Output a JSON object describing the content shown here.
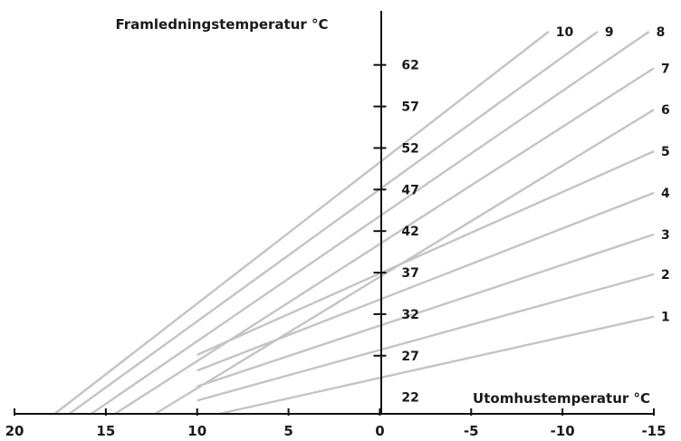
{
  "chart_data": {
    "type": "line",
    "title": "",
    "ylabel": "Framledningstemperatur °C",
    "xlabel": "Utomhustemperatur °C",
    "xlim": [
      20,
      -15
    ],
    "ylim": [
      20,
      66
    ],
    "x_ticks": [
      20,
      15,
      10,
      5,
      0,
      -5,
      -10,
      -15
    ],
    "x_tick_labels": [
      "20",
      "15",
      "10",
      "5",
      "0",
      "-5",
      "-10",
      "-15"
    ],
    "y_ticks": [
      22,
      27,
      32,
      37,
      42,
      47,
      52,
      57,
      62
    ],
    "y_tick_labels": [
      "22",
      "27",
      "32",
      "37",
      "42",
      "47",
      "52",
      "57",
      "62"
    ],
    "grid": false,
    "line_color": "#c4c4c4",
    "series": [
      {
        "name": "1",
        "x": [
          8.8,
          -15
        ],
        "y": [
          20,
          31.7
        ]
      },
      {
        "name": "2",
        "x": [
          10,
          -15
        ],
        "y": [
          21.6,
          36.8
        ]
      },
      {
        "name": "3",
        "x": [
          10,
          -15
        ],
        "y": [
          23.3,
          41.6
        ]
      },
      {
        "name": "4",
        "x": [
          10,
          -15
        ],
        "y": [
          25.2,
          46.6
        ]
      },
      {
        "name": "5",
        "x": [
          10,
          -15
        ],
        "y": [
          27.1,
          51.6
        ]
      },
      {
        "name": "6",
        "x": [
          12.3,
          -15
        ],
        "y": [
          20,
          56.6
        ]
      },
      {
        "name": "7",
        "x": [
          14.5,
          -15
        ],
        "y": [
          20,
          61.6
        ]
      },
      {
        "name": "8",
        "x": [
          15.8,
          -15
        ],
        "y": [
          20,
          66.4
        ]
      },
      {
        "name": "9",
        "x": [
          17,
          -15
        ],
        "y": [
          20,
          70.9
        ]
      },
      {
        "name": "10",
        "x": [
          17.8,
          -15
        ],
        "y": [
          20,
          75.8
        ]
      }
    ]
  }
}
